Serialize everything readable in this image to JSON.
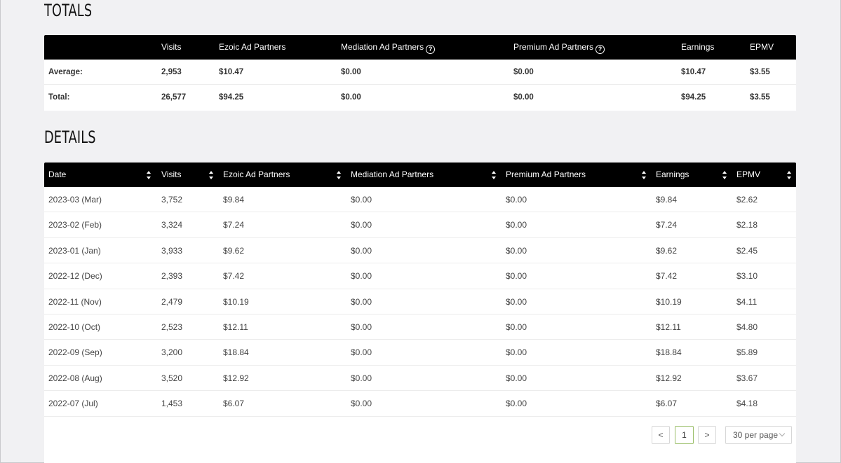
{
  "totals": {
    "title": "TOTALS",
    "headers": [
      "",
      "Visits",
      "Ezoic Ad Partners",
      "Mediation Ad Partners",
      "Premium Ad Partners",
      "Earnings",
      "EPMV"
    ],
    "rows": [
      [
        "Average:",
        "2,953",
        "$10.47",
        "$0.00",
        "$0.00",
        "$10.47",
        "$3.55"
      ],
      [
        "Total:",
        "26,577",
        "$94.25",
        "$0.00",
        "$0.00",
        "$94.25",
        "$3.55"
      ]
    ]
  },
  "details": {
    "title": "DETAILS",
    "headers": [
      "Date",
      "Visits",
      "Ezoic Ad Partners",
      "Mediation Ad Partners",
      "Premium Ad Partners",
      "Earnings",
      "EPMV"
    ],
    "rows": [
      [
        "2023-03 (Mar)",
        "3,752",
        "$9.84",
        "$0.00",
        "$0.00",
        "$9.84",
        "$2.62"
      ],
      [
        "2023-02 (Feb)",
        "3,324",
        "$7.24",
        "$0.00",
        "$0.00",
        "$7.24",
        "$2.18"
      ],
      [
        "2023-01 (Jan)",
        "3,933",
        "$9.62",
        "$0.00",
        "$0.00",
        "$9.62",
        "$2.45"
      ],
      [
        "2022-12 (Dec)",
        "2,393",
        "$7.42",
        "$0.00",
        "$0.00",
        "$7.42",
        "$3.10"
      ],
      [
        "2022-11 (Nov)",
        "2,479",
        "$10.19",
        "$0.00",
        "$0.00",
        "$10.19",
        "$4.11"
      ],
      [
        "2022-10 (Oct)",
        "2,523",
        "$12.11",
        "$0.00",
        "$0.00",
        "$12.11",
        "$4.80"
      ],
      [
        "2022-09 (Sep)",
        "3,200",
        "$18.84",
        "$0.00",
        "$0.00",
        "$18.84",
        "$5.89"
      ],
      [
        "2022-08 (Aug)",
        "3,520",
        "$12.92",
        "$0.00",
        "$0.00",
        "$12.92",
        "$3.67"
      ],
      [
        "2022-07 (Jul)",
        "1,453",
        "$6.07",
        "$0.00",
        "$0.00",
        "$6.07",
        "$4.18"
      ]
    ]
  },
  "pagination": {
    "prev": "<",
    "current_page": "1",
    "next": ">",
    "per_page": "30 per page"
  },
  "icons": {
    "help": "help-circle-icon",
    "sort": "sort-arrows-icon",
    "dropdown": "chevron-down-icon"
  }
}
